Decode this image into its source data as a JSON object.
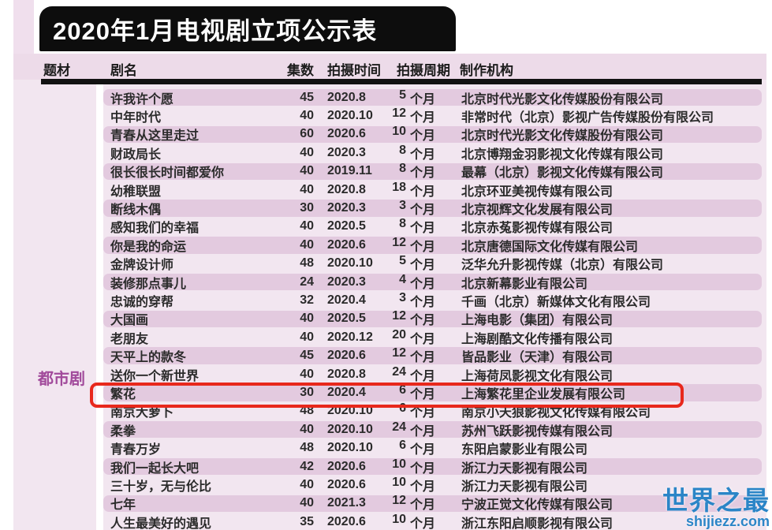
{
  "title": "2020年1月电视剧立项公示表",
  "watermark": {
    "brand": "世界之最",
    "domain": "shijiezz.com"
  },
  "table": {
    "columns": {
      "genre": "题材",
      "name": "剧名",
      "episodes": "集数",
      "shoot_date": "拍摄时间",
      "shoot_period": "拍摄周期",
      "producer": "制作机构"
    },
    "genre_label": "都市剧",
    "period_unit": "个月",
    "highlighted_row": "繁花",
    "rows": [
      {
        "name": "许我许个愿",
        "episodes": "45",
        "date": "2020.8",
        "period": "5",
        "company": "北京时代光影文化传媒股份有限公司"
      },
      {
        "name": "中年时代",
        "episodes": "40",
        "date": "2020.10",
        "period": "12",
        "company": "非常时代（北京）影视广告传媒股份有限公司"
      },
      {
        "name": "青春从这里走过",
        "episodes": "60",
        "date": "2020.6",
        "period": "10",
        "company": "北京时代光影文化传媒股份有限公司"
      },
      {
        "name": "财政局长",
        "episodes": "40",
        "date": "2020.3",
        "period": "8",
        "company": "北京博翔金羽影视文化传媒有限公司"
      },
      {
        "name": "很长很长时间都爱你",
        "episodes": "40",
        "date": "2019.11",
        "period": "8",
        "company": "最幕（北京）影视文化传媒有限公司"
      },
      {
        "name": "幼稚联盟",
        "episodes": "40",
        "date": "2020.8",
        "period": "18",
        "company": "北京环亚美视传媒有限公司"
      },
      {
        "name": "断线木偶",
        "episodes": "30",
        "date": "2020.3",
        "period": "3",
        "company": "北京视辉文化发展有限公司"
      },
      {
        "name": "感知我们的幸福",
        "episodes": "40",
        "date": "2020.5",
        "period": "8",
        "company": "北京赤菟影视传媒有限公司"
      },
      {
        "name": "你是我的命运",
        "episodes": "40",
        "date": "2020.6",
        "period": "12",
        "company": "北京唐德国际文化传媒有限公司"
      },
      {
        "name": "金牌设计师",
        "episodes": "48",
        "date": "2020.10",
        "period": "5",
        "company": "泛华允升影视传媒（北京）有限公司"
      },
      {
        "name": "装修那点事儿",
        "episodes": "24",
        "date": "2020.3",
        "period": "4",
        "company": "北京新幕影业有限公司"
      },
      {
        "name": "忠诚的穿帮",
        "episodes": "32",
        "date": "2020.4",
        "period": "3",
        "company": "千画（北京）新媒体文化有限公司"
      },
      {
        "name": "大国画",
        "episodes": "40",
        "date": "2020.5",
        "period": "12",
        "company": "上海电影（集团）有限公司"
      },
      {
        "name": "老朋友",
        "episodes": "40",
        "date": "2020.12",
        "period": "20",
        "company": "上海剧酷文化传播有限公司"
      },
      {
        "name": "天平上的款冬",
        "episodes": "45",
        "date": "2020.6",
        "period": "12",
        "company": "皆品影业（天津）有限公司"
      },
      {
        "name": "送你一个新世界",
        "episodes": "40",
        "date": "2020.8",
        "period": "24",
        "company": "上海荷凤影视文化有限公司"
      },
      {
        "name": "繁花",
        "episodes": "30",
        "date": "2020.4",
        "period": "6",
        "company": "上海繁花里企业发展有限公司",
        "highlighted": true
      },
      {
        "name": "南京大萝卜",
        "episodes": "48",
        "date": "2020.10",
        "period": "6",
        "company": "南京小天狼影视文化传媒有限公司"
      },
      {
        "name": "柔拳",
        "episodes": "40",
        "date": "2020.10",
        "period": "24",
        "company": "苏州飞跃影视传媒有限公司"
      },
      {
        "name": "青春万岁",
        "episodes": "48",
        "date": "2020.10",
        "period": "6",
        "company": "东阳启蒙影业有限公司"
      },
      {
        "name": "我们一起长大吧",
        "episodes": "42",
        "date": "2020.6",
        "period": "10",
        "company": "浙江力天影视有限公司"
      },
      {
        "name": "三十岁，无与伦比",
        "episodes": "40",
        "date": "2020.6",
        "period": "10",
        "company": "浙江力天影视有限公司"
      },
      {
        "name": "七年",
        "episodes": "40",
        "date": "2021.3",
        "period": "12",
        "company": "宁波正觉文化传媒有限公司"
      },
      {
        "name": "人生最美好的遇见",
        "episodes": "35",
        "date": "2020.6",
        "period": "10",
        "company": "浙江东阳启顺影视有限公司"
      }
    ]
  },
  "colors": {
    "row_stripe": "#e3cadf",
    "table_bg": "#f2e6f0",
    "header_band": "#eddbe9",
    "banner": "#0d0d0d",
    "genre_purple": "#a14a9b",
    "highlight_red": "#e8281c",
    "watermark_blue": "#2b85c7"
  }
}
